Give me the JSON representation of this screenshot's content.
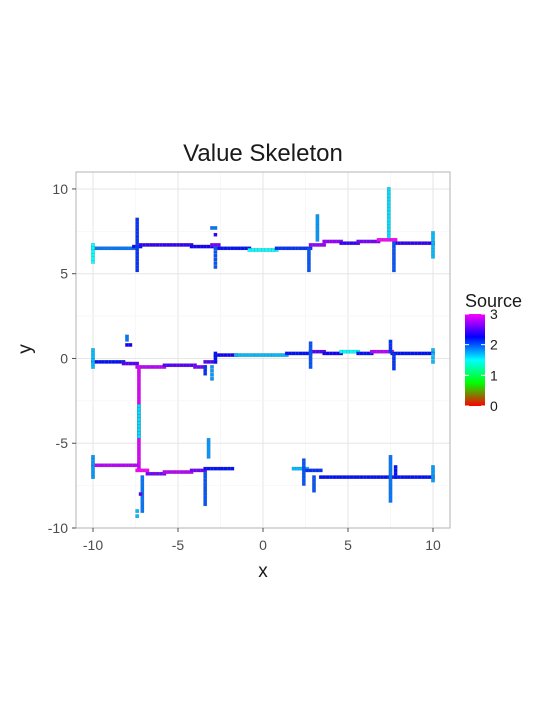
{
  "chart_data": {
    "type": "heatmap",
    "title": "Value Skeleton",
    "xlabel": "x",
    "ylabel": "y",
    "xlim": [
      -11,
      11
    ],
    "ylim": [
      -10,
      11
    ],
    "x_ticks": [
      -10,
      -5,
      0,
      5,
      10
    ],
    "y_ticks": [
      -10,
      -5,
      0,
      5,
      10
    ],
    "x_tick_labels": [
      "-10",
      "-5",
      "0",
      "5",
      "10"
    ],
    "y_tick_labels": [
      "-10",
      "-5",
      "0",
      "5",
      "10"
    ],
    "grid": true,
    "legend": {
      "title": "Source",
      "position": "right",
      "min": 0,
      "max": 3,
      "ticks": [
        0,
        1,
        2,
        3
      ],
      "tick_labels": [
        "0",
        "1",
        "2",
        "3"
      ],
      "colors": [
        "#ff0000",
        "#00ff00",
        "#00ffff",
        "#0000ff",
        "#ff00ff"
      ]
    },
    "cell_size": 0.2,
    "segments": [
      {
        "x1": -10,
        "y1": 6.5,
        "x2": -7.6,
        "y2": 6.5,
        "value": 1.9
      },
      {
        "x1": -7.6,
        "y1": 6.6,
        "x2": -7.2,
        "y2": 6.6,
        "value": 2.2
      },
      {
        "x1": -7.2,
        "y1": 6.7,
        "x2": -4.2,
        "y2": 6.7,
        "value": 2.4
      },
      {
        "x1": -4.2,
        "y1": 6.6,
        "x2": -3.0,
        "y2": 6.6,
        "value": 2.3
      },
      {
        "x1": -3.0,
        "y1": 6.7,
        "x2": -2.6,
        "y2": 6.7,
        "value": 2.6
      },
      {
        "x1": -2.6,
        "y1": 6.5,
        "x2": -0.8,
        "y2": 6.5,
        "value": 2.2
      },
      {
        "x1": -0.8,
        "y1": 6.4,
        "x2": 0.8,
        "y2": 6.4,
        "value": 1.5
      },
      {
        "x1": 0.8,
        "y1": 6.5,
        "x2": 2.8,
        "y2": 6.5,
        "value": 2.1
      },
      {
        "x1": 2.8,
        "y1": 6.7,
        "x2": 3.6,
        "y2": 6.7,
        "value": 2.7
      },
      {
        "x1": 3.6,
        "y1": 6.9,
        "x2": 4.6,
        "y2": 6.9,
        "value": 2.7
      },
      {
        "x1": 4.6,
        "y1": 6.8,
        "x2": 5.6,
        "y2": 6.8,
        "value": 2.4
      },
      {
        "x1": 5.6,
        "y1": 6.9,
        "x2": 6.8,
        "y2": 6.9,
        "value": 2.6
      },
      {
        "x1": 6.8,
        "y1": 7.0,
        "x2": 7.8,
        "y2": 7.0,
        "value": 3.0
      },
      {
        "x1": 7.8,
        "y1": 6.8,
        "x2": 10,
        "y2": 6.8,
        "value": 2.4
      },
      {
        "x1": -10,
        "y1": 6.7,
        "x2": -10,
        "y2": 5.7,
        "value": 1.5
      },
      {
        "x1": -7.4,
        "y1": 8.2,
        "x2": -7.4,
        "y2": 5.2,
        "value": 2.1
      },
      {
        "x1": -2.8,
        "y1": 6.5,
        "x2": -2.8,
        "y2": 5.4,
        "value": 2.0
      },
      {
        "x1": 2.7,
        "y1": 6.4,
        "x2": 2.7,
        "y2": 5.2,
        "value": 2.0
      },
      {
        "x1": 3.2,
        "y1": 8.4,
        "x2": 3.2,
        "y2": 7.0,
        "value": 1.8
      },
      {
        "x1": 7.4,
        "y1": 10,
        "x2": 7.4,
        "y2": 7.2,
        "value": 1.6
      },
      {
        "x1": 7.7,
        "y1": 6.8,
        "x2": 7.7,
        "y2": 5.2,
        "value": 2.0
      },
      {
        "x1": 10,
        "y1": 7.4,
        "x2": 10,
        "y2": 6.0,
        "value": 1.7
      },
      {
        "x1": -10,
        "y1": -0.2,
        "x2": -8.2,
        "y2": -0.2,
        "value": 2.2
      },
      {
        "x1": -8.2,
        "y1": -0.3,
        "x2": -7.4,
        "y2": -0.3,
        "value": 2.5
      },
      {
        "x1": -7.4,
        "y1": -0.5,
        "x2": -5.8,
        "y2": -0.5,
        "value": 2.8
      },
      {
        "x1": -5.8,
        "y1": -0.4,
        "x2": -4.0,
        "y2": -0.4,
        "value": 2.5
      },
      {
        "x1": -4.0,
        "y1": -0.5,
        "x2": -3.4,
        "y2": -0.5,
        "value": 2.6
      },
      {
        "x1": -3.4,
        "y1": -0.2,
        "x2": -2.8,
        "y2": -0.2,
        "value": 2.5
      },
      {
        "x1": -2.8,
        "y1": 0.2,
        "x2": -1.6,
        "y2": 0.2,
        "value": 2.3
      },
      {
        "x1": -1.6,
        "y1": 0.2,
        "x2": 1.4,
        "y2": 0.2,
        "value": 1.7
      },
      {
        "x1": 1.4,
        "y1": 0.3,
        "x2": 2.8,
        "y2": 0.3,
        "value": 2.2
      },
      {
        "x1": 2.8,
        "y1": 0.4,
        "x2": 3.6,
        "y2": 0.4,
        "value": 2.5
      },
      {
        "x1": 3.6,
        "y1": 0.3,
        "x2": 4.6,
        "y2": 0.3,
        "value": 2.3
      },
      {
        "x1": 4.6,
        "y1": 0.4,
        "x2": 5.6,
        "y2": 0.4,
        "value": 1.5
      },
      {
        "x1": 5.6,
        "y1": 0.3,
        "x2": 6.4,
        "y2": 0.3,
        "value": 2.2
      },
      {
        "x1": 6.4,
        "y1": 0.4,
        "x2": 7.6,
        "y2": 0.4,
        "value": 2.8
      },
      {
        "x1": 7.6,
        "y1": 0.3,
        "x2": 10,
        "y2": 0.3,
        "value": 2.2
      },
      {
        "x1": -10,
        "y1": 0.5,
        "x2": -10,
        "y2": -0.5,
        "value": 1.7
      },
      {
        "x1": -7.3,
        "y1": -0.5,
        "x2": -7.3,
        "y2": -6.5,
        "value": 2.9
      },
      {
        "x1": -3.4,
        "y1": -0.5,
        "x2": -3.4,
        "y2": -0.9,
        "value": 2.1
      },
      {
        "x1": -3.0,
        "y1": -0.5,
        "x2": -3.0,
        "y2": -1.2,
        "value": 1.8
      },
      {
        "x1": -2.8,
        "y1": 0.3,
        "x2": -2.8,
        "y2": -0.2,
        "value": 2.2
      },
      {
        "x1": 2.8,
        "y1": 0.9,
        "x2": 2.8,
        "y2": -0.5,
        "value": 2.0
      },
      {
        "x1": 7.5,
        "y1": 1.0,
        "x2": 7.5,
        "y2": 0.4,
        "value": 2.1
      },
      {
        "x1": 7.7,
        "y1": 0.2,
        "x2": 7.7,
        "y2": -0.6,
        "value": 2.1
      },
      {
        "x1": 10,
        "y1": 0.5,
        "x2": 10,
        "y2": -0.2,
        "value": 1.7
      },
      {
        "x1": -10,
        "y1": -6.3,
        "x2": -7.4,
        "y2": -6.3,
        "value": 2.8
      },
      {
        "x1": -7.4,
        "y1": -6.6,
        "x2": -6.8,
        "y2": -6.6,
        "value": 3.0
      },
      {
        "x1": -6.8,
        "y1": -6.8,
        "x2": -5.8,
        "y2": -6.8,
        "value": 2.6
      },
      {
        "x1": -5.8,
        "y1": -6.7,
        "x2": -4.2,
        "y2": -6.7,
        "value": 2.8
      },
      {
        "x1": -4.2,
        "y1": -6.6,
        "x2": -3.4,
        "y2": -6.6,
        "value": 2.6
      },
      {
        "x1": -3.4,
        "y1": -6.5,
        "x2": -1.8,
        "y2": -6.5,
        "value": 2.2
      },
      {
        "x1": 1.8,
        "y1": -6.5,
        "x2": 2.6,
        "y2": -6.5,
        "value": 1.7
      },
      {
        "x1": 2.6,
        "y1": -6.6,
        "x2": 3.4,
        "y2": -6.6,
        "value": 2.1
      },
      {
        "x1": 3.4,
        "y1": -7.0,
        "x2": 10,
        "y2": -7.0,
        "value": 2.2
      },
      {
        "x1": -10,
        "y1": -5.8,
        "x2": -10,
        "y2": -7.0,
        "value": 1.8
      },
      {
        "x1": -7.3,
        "y1": -2.8,
        "x2": -7.3,
        "y2": -4.6,
        "value": 1.6
      },
      {
        "x1": -7.1,
        "y1": -7.0,
        "x2": -7.1,
        "y2": -9.0,
        "value": 1.9
      },
      {
        "x1": -3.4,
        "y1": -6.8,
        "x2": -3.4,
        "y2": -8.6,
        "value": 2.0
      },
      {
        "x1": -3.2,
        "y1": -4.8,
        "x2": -3.2,
        "y2": -5.8,
        "value": 1.8
      },
      {
        "x1": 2.4,
        "y1": -6.0,
        "x2": 2.4,
        "y2": -7.4,
        "value": 2.0
      },
      {
        "x1": 3.0,
        "y1": -7.0,
        "x2": 3.0,
        "y2": -7.8,
        "value": 2.0
      },
      {
        "x1": 7.5,
        "y1": -5.8,
        "x2": 7.5,
        "y2": -8.4,
        "value": 1.9
      },
      {
        "x1": 7.8,
        "y1": -6.4,
        "x2": 7.8,
        "y2": -7.0,
        "value": 2.2
      },
      {
        "x1": 10,
        "y1": -6.4,
        "x2": 10,
        "y2": -7.2,
        "value": 1.8
      }
    ],
    "points": [
      {
        "x": -3.0,
        "y": 7.7,
        "value": 1.9
      },
      {
        "x": -2.8,
        "y": 7.7,
        "value": 1.9
      },
      {
        "x": -2.8,
        "y": 7.3,
        "value": 2.4
      },
      {
        "x": -8.0,
        "y": 1.3,
        "value": 1.9
      },
      {
        "x": -8.0,
        "y": 1.1,
        "value": 1.9
      },
      {
        "x": -8.0,
        "y": 0.8,
        "value": 2.3
      },
      {
        "x": -7.8,
        "y": 0.8,
        "value": 2.3
      },
      {
        "x": -7.4,
        "y": -9.3,
        "value": 1.7
      },
      {
        "x": -7.4,
        "y": -9.0,
        "value": 1.7
      },
      {
        "x": -7.2,
        "y": -8.0,
        "value": 2.5
      }
    ]
  }
}
